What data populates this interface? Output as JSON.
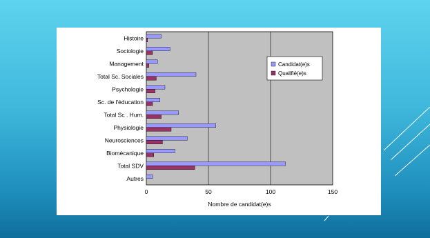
{
  "colors": {
    "plot_background": "#c0c0c0",
    "candidat": "#9999ff",
    "qualifie": "#993366",
    "gridline": "#000000"
  },
  "chart_data": {
    "type": "bar",
    "orientation": "horizontal",
    "categories": [
      "Histoire",
      "Sociologie",
      "Management",
      "Total Sc. Sociales",
      "Psychologie",
      "Sc. de l'éducation",
      "Total Sc . Hum.",
      "Physiologie",
      "Neurosciences",
      "Biomécanique",
      "Total SDV",
      "Autres"
    ],
    "series": [
      {
        "name": "Candidat(e)s",
        "values": [
          12,
          19,
          9,
          40,
          15,
          11,
          26,
          56,
          33,
          23,
          112,
          5
        ]
      },
      {
        "name": "Qualifié(e)s",
        "values": [
          1,
          5,
          2,
          8,
          7,
          5,
          12,
          20,
          13,
          6,
          39,
          0
        ]
      }
    ],
    "xlabel": "Nombre de candidat(e)s",
    "ylabel": "",
    "xlim": [
      0,
      150
    ],
    "xticks": [
      0,
      50,
      100,
      150
    ],
    "grid": "vertical",
    "legend_position": "right"
  }
}
